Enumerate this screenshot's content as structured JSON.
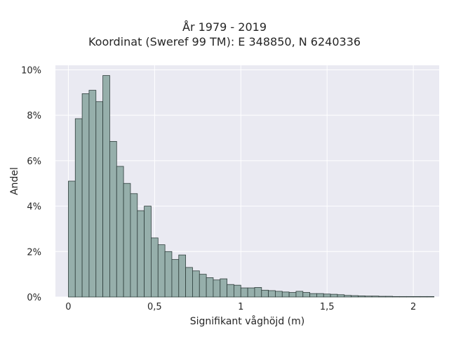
{
  "chart_data": {
    "type": "bar",
    "title": [
      "År 1979 - 2019",
      "Koordinat (Sweref 99 TM): E 348850, N 6240336"
    ],
    "xlabel": "Signifikant våghöjd (m)",
    "ylabel": "Andel",
    "xlim": [
      -0.075,
      2.15
    ],
    "ylim": [
      0,
      10.2
    ],
    "x_ticks": [
      0,
      0.5,
      1,
      1.5,
      2
    ],
    "x_tick_labels": [
      "0",
      "0,5",
      "1",
      "1,5",
      "2"
    ],
    "y_ticks": [
      0,
      2,
      4,
      6,
      8,
      10
    ],
    "y_tick_labels": [
      "0%",
      "2%",
      "4%",
      "6%",
      "8%",
      "10%"
    ],
    "bin_width": 0.04,
    "bin_start": 0.0,
    "values": [
      5.1,
      7.85,
      8.95,
      9.1,
      8.6,
      9.75,
      6.85,
      5.75,
      5.0,
      4.55,
      3.8,
      4.0,
      2.6,
      2.3,
      2.0,
      1.65,
      1.85,
      1.3,
      1.15,
      1.0,
      0.85,
      0.75,
      0.8,
      0.55,
      0.52,
      0.4,
      0.4,
      0.42,
      0.3,
      0.28,
      0.25,
      0.22,
      0.2,
      0.25,
      0.2,
      0.15,
      0.15,
      0.13,
      0.12,
      0.1,
      0.07,
      0.06,
      0.05,
      0.04,
      0.04,
      0.03,
      0.03,
      0.02,
      0.02,
      0.02,
      0.02,
      0.02,
      0.02
    ],
    "bar_color": "#96afab",
    "edge_color": "#2f3e3c",
    "background_color": "#eaeaf2",
    "grid": true,
    "grid_color": "#ffffff"
  }
}
